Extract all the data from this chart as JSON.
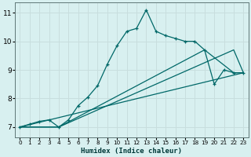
{
  "xlabel": "Humidex (Indice chaleur)",
  "bg_color": "#d8f0f0",
  "grid_color": "#c8dede",
  "line_color": "#006868",
  "xlim": [
    -0.5,
    23.5
  ],
  "ylim": [
    6.65,
    11.35
  ],
  "xticks": [
    0,
    1,
    2,
    3,
    4,
    5,
    6,
    7,
    8,
    9,
    10,
    11,
    12,
    13,
    14,
    15,
    16,
    17,
    18,
    19,
    20,
    21,
    22,
    23
  ],
  "yticks": [
    7,
    8,
    9,
    10,
    11
  ],
  "line1_x": [
    0,
    1,
    2,
    3,
    4,
    5,
    6,
    7,
    8,
    9,
    10,
    11,
    12,
    13,
    14,
    15,
    16,
    17,
    18,
    19,
    20,
    21,
    22,
    23
  ],
  "line1_y": [
    7.0,
    7.1,
    7.2,
    7.25,
    7.0,
    7.25,
    7.75,
    8.05,
    8.45,
    9.2,
    9.85,
    10.35,
    10.45,
    11.1,
    10.35,
    10.2,
    10.1,
    10.0,
    10.0,
    9.7,
    8.5,
    9.0,
    8.9,
    8.9
  ],
  "line2_x": [
    0,
    23
  ],
  "line2_y": [
    7.0,
    8.9
  ],
  "line3_x": [
    0,
    4,
    22,
    23
  ],
  "line3_y": [
    7.0,
    7.0,
    9.7,
    8.9
  ],
  "line4_x": [
    0,
    4,
    19,
    22,
    23
  ],
  "line4_y": [
    7.0,
    7.0,
    9.7,
    8.9,
    8.9
  ]
}
